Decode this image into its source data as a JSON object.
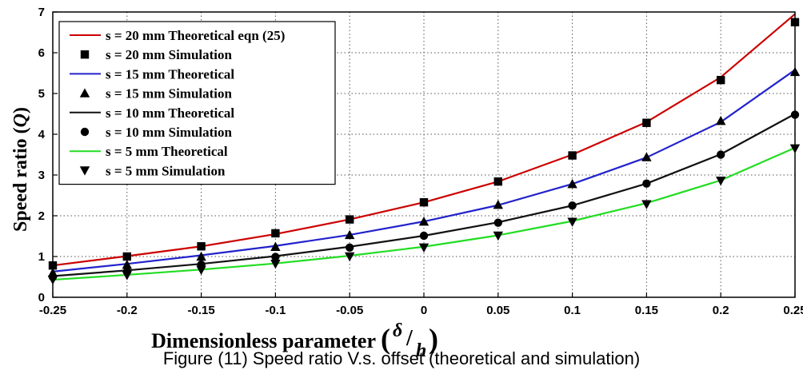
{
  "chart_data": {
    "type": "line",
    "xlabel": "Dimensionless parameter",
    "xlabel_math": {
      "numerator": "δ",
      "denominator": "h"
    },
    "ylabel": "Speed ratio",
    "ylabel_math": "Q",
    "xlim": [
      -0.25,
      0.25
    ],
    "ylim": [
      0,
      7
    ],
    "grid": true,
    "legend_position": "top-left",
    "x_ticks": [
      "-0.25",
      "-0.2",
      "-0.15",
      "-0.1",
      "-0.05",
      "0",
      "0.05",
      "0.1",
      "0.15",
      "0.2",
      "0.25"
    ],
    "y_ticks": [
      "0",
      "1",
      "2",
      "3",
      "4",
      "5",
      "6",
      "7"
    ],
    "x": [
      -0.25,
      -0.2,
      -0.15,
      -0.1,
      -0.05,
      0,
      0.05,
      0.1,
      0.15,
      0.2,
      0.25
    ],
    "series": [
      {
        "name": "s = 20 mm Theoretical eqn (25)",
        "kind": "line",
        "color": "#cc0000",
        "values": [
          0.78,
          1.01,
          1.25,
          1.55,
          1.91,
          2.33,
          2.84,
          3.5,
          4.3,
          5.4,
          6.95
        ]
      },
      {
        "name": "s = 20 mm Simulation",
        "kind": "marker",
        "marker": "square",
        "color": "#000000",
        "values": [
          0.78,
          1.0,
          1.25,
          1.57,
          1.91,
          2.33,
          2.84,
          3.48,
          4.28,
          5.33,
          6.75
        ]
      },
      {
        "name": "s = 15 mm Theoretical",
        "kind": "line",
        "color": "#2222cc",
        "values": [
          0.63,
          0.82,
          1.03,
          1.26,
          1.53,
          1.86,
          2.26,
          2.78,
          3.43,
          4.3,
          5.58
        ]
      },
      {
        "name": "s = 15 mm Simulation",
        "kind": "marker",
        "marker": "triangle-up",
        "color": "#000000",
        "values": [
          0.6,
          0.8,
          1.0,
          1.24,
          1.53,
          1.86,
          2.27,
          2.78,
          3.44,
          4.33,
          5.53
        ]
      },
      {
        "name": "s = 10 mm Theoretical",
        "kind": "line",
        "color": "#111111",
        "values": [
          0.52,
          0.66,
          0.82,
          1.01,
          1.24,
          1.51,
          1.84,
          2.25,
          2.79,
          3.51,
          4.5
        ]
      },
      {
        "name": "s = 10 mm Simulation",
        "kind": "marker",
        "marker": "circle",
        "color": "#000000",
        "values": [
          0.5,
          0.63,
          0.8,
          0.99,
          1.22,
          1.51,
          1.83,
          2.25,
          2.79,
          3.5,
          4.48
        ]
      },
      {
        "name": "s = 5 mm Theoretical",
        "kind": "line",
        "color": "#22dd22",
        "values": [
          0.43,
          0.55,
          0.68,
          0.83,
          1.02,
          1.24,
          1.52,
          1.87,
          2.31,
          2.87,
          3.67
        ]
      },
      {
        "name": "s = 5 mm Simulation",
        "kind": "marker",
        "marker": "triangle-down",
        "color": "#000000",
        "values": [
          0.43,
          0.54,
          0.67,
          0.82,
          1.0,
          1.22,
          1.51,
          1.85,
          2.28,
          2.86,
          3.65
        ]
      }
    ]
  },
  "caption": "Figure (11) Speed ratio V.s. offset (theoretical and simulation)"
}
